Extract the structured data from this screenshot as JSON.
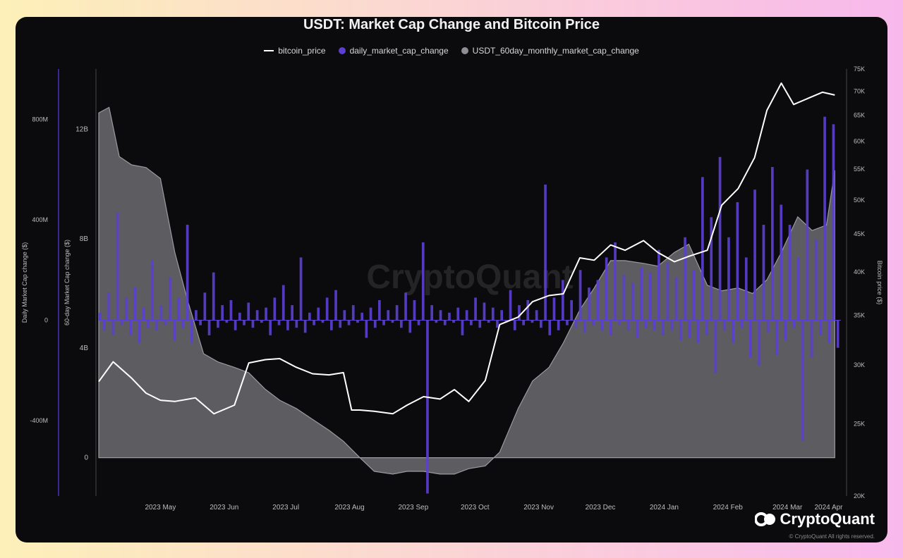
{
  "chart_data": {
    "type": "area",
    "title": "USDT: Market Cap Change and Bitcoin Price",
    "legend": [
      "bitcoin_price",
      "daily_market_cap_change",
      "USDT_60day_monthly_market_cap_change"
    ],
    "colors": {
      "bitcoin_price": "#ffffff",
      "daily_market_cap_change": "#5b3fd1",
      "USDT_60day_monthly_market_cap_change": "#8e8e94"
    },
    "x_ticks": [
      "2023 May",
      "2023 Jun",
      "2023 Jul",
      "2023 Aug",
      "2023 Sep",
      "2023 Oct",
      "2023 Nov",
      "2023 Dec",
      "2024 Jan",
      "2024 Feb",
      "2024 Mar",
      "2024 Apr"
    ],
    "axes": {
      "daily": {
        "label": "Daily Market Cap change ($)",
        "ticks": [
          "800M",
          "400M",
          "0",
          "-400M"
        ],
        "ylim": [
          -700,
          1000
        ]
      },
      "sixty_day": {
        "label": "60-day Market Cap change ($)",
        "ticks": [
          "12B",
          "8B",
          "4B",
          "0"
        ],
        "ylim": [
          -1.4,
          14.2
        ]
      },
      "btc": {
        "label": "Bitcoin price ($)",
        "ticks": [
          "75K",
          "70K",
          "65K",
          "60K",
          "55K",
          "50K",
          "45K",
          "40K",
          "35K",
          "30K",
          "25K",
          "20K"
        ],
        "scale": "log",
        "ylim": [
          20000,
          75000
        ]
      }
    },
    "series": [
      {
        "name": "USDT_60day_monthly_market_cap_change",
        "unit": "B",
        "x": [
          "2023-04-15",
          "2023-04-20",
          "2023-04-25",
          "2023-05-01",
          "2023-05-08",
          "2023-05-15",
          "2023-05-22",
          "2023-05-28",
          "2023-06-05",
          "2023-06-12",
          "2023-06-20",
          "2023-06-27",
          "2023-07-05",
          "2023-07-12",
          "2023-07-20",
          "2023-07-28",
          "2023-08-05",
          "2023-08-12",
          "2023-08-20",
          "2023-08-27",
          "2023-09-05",
          "2023-09-12",
          "2023-09-20",
          "2023-09-28",
          "2023-10-05",
          "2023-10-12",
          "2023-10-20",
          "2023-10-27",
          "2023-11-05",
          "2023-11-12",
          "2023-11-20",
          "2023-11-27",
          "2023-12-05",
          "2023-12-12",
          "2023-12-20",
          "2023-12-27",
          "2024-01-05",
          "2024-01-12",
          "2024-01-20",
          "2024-01-27",
          "2024-02-05",
          "2024-02-12",
          "2024-02-20",
          "2024-02-27",
          "2024-03-05",
          "2024-03-12",
          "2024-03-20",
          "2024-03-27",
          "2024-04-03",
          "2024-04-07"
        ],
        "values": [
          12.6,
          12.8,
          11.0,
          10.7,
          10.6,
          10.2,
          7.5,
          5.8,
          3.8,
          3.5,
          3.3,
          3.1,
          2.5,
          2.1,
          1.8,
          1.4,
          1.0,
          0.6,
          0.0,
          -0.5,
          -0.6,
          -0.5,
          -0.5,
          -0.6,
          -0.6,
          -0.4,
          -0.3,
          0.2,
          1.8,
          2.8,
          3.3,
          4.2,
          5.4,
          6.2,
          7.2,
          7.2,
          7.1,
          7.0,
          7.5,
          7.8,
          6.3,
          6.1,
          6.2,
          6.0,
          6.5,
          7.5,
          8.8,
          8.3,
          8.5,
          10.5
        ]
      },
      {
        "name": "bitcoin_price",
        "unit": "USD",
        "x": [
          "2023-04-15",
          "2023-04-22",
          "2023-05-01",
          "2023-05-08",
          "2023-05-15",
          "2023-05-22",
          "2023-06-01",
          "2023-06-10",
          "2023-06-20",
          "2023-06-27",
          "2023-07-05",
          "2023-07-12",
          "2023-07-20",
          "2023-07-28",
          "2023-08-05",
          "2023-08-12",
          "2023-08-16",
          "2023-08-20",
          "2023-08-27",
          "2023-09-05",
          "2023-09-12",
          "2023-09-20",
          "2023-09-28",
          "2023-10-05",
          "2023-10-12",
          "2023-10-20",
          "2023-10-27",
          "2023-11-05",
          "2023-11-12",
          "2023-11-20",
          "2023-11-27",
          "2023-12-05",
          "2023-12-12",
          "2023-12-20",
          "2023-12-27",
          "2024-01-05",
          "2024-01-12",
          "2024-01-20",
          "2024-01-27",
          "2024-02-05",
          "2024-02-12",
          "2024-02-20",
          "2024-02-28",
          "2024-03-05",
          "2024-03-12",
          "2024-03-18",
          "2024-03-25",
          "2024-04-01",
          "2024-04-07"
        ],
        "values": [
          28500,
          30300,
          28800,
          27500,
          26900,
          26800,
          27100,
          25800,
          26500,
          30200,
          30500,
          30600,
          29800,
          29200,
          29100,
          29300,
          26100,
          26100,
          26000,
          25800,
          26500,
          27200,
          27000,
          27800,
          26800,
          28600,
          34000,
          34800,
          36500,
          37200,
          37400,
          41800,
          41500,
          43500,
          42800,
          44100,
          42500,
          41300,
          42000,
          42800,
          49200,
          51800,
          57000,
          66000,
          71800,
          67200,
          68500,
          69800,
          69200
        ]
      },
      {
        "name": "daily_market_cap_change",
        "unit": "M",
        "values": [
          30,
          -40,
          110,
          -60,
          430,
          -20,
          90,
          -60,
          130,
          -90,
          50,
          -30,
          240,
          -40,
          60,
          -20,
          170,
          -80,
          90,
          -30,
          380,
          -90,
          40,
          -20,
          110,
          -60,
          190,
          -30,
          60,
          -10,
          80,
          -40,
          30,
          -20,
          70,
          -30,
          40,
          -10,
          50,
          -60,
          90,
          -20,
          140,
          -40,
          60,
          -30,
          250,
          -50,
          30,
          -20,
          50,
          -10,
          90,
          -40,
          120,
          -30,
          40,
          -20,
          60,
          -10,
          30,
          -70,
          50,
          -30,
          80,
          -20,
          40,
          -10,
          60,
          -30,
          110,
          -50,
          80,
          -20,
          310,
          -690,
          60,
          -10,
          40,
          -20,
          30,
          -10,
          50,
          -60,
          40,
          -20,
          90,
          -30,
          70,
          -10,
          50,
          -30,
          40,
          -10,
          120,
          -40,
          60,
          -20,
          80,
          -10,
          40,
          -30,
          540,
          -60,
          90,
          -40,
          160,
          -20,
          80,
          -30,
          200,
          -50,
          130,
          -20,
          160,
          -40,
          250,
          -60,
          310,
          -20,
          180,
          -40,
          150,
          -70,
          210,
          -30,
          190,
          -40,
          280,
          -60,
          230,
          -40,
          170,
          -80,
          330,
          -70,
          200,
          -90,
          570,
          -60,
          410,
          -210,
          650,
          -40,
          330,
          -90,
          470,
          -30,
          250,
          -150,
          520,
          -180,
          380,
          -50,
          610,
          -140,
          460,
          -80,
          380,
          -30,
          250,
          -480,
          600,
          -150,
          320,
          -60,
          810,
          -90,
          780,
          -110
        ]
      }
    ]
  },
  "brand": {
    "name": "CryptoQuant",
    "watermark": "CryptoQuant",
    "copyright": "© CryptoQuant All rights reserved."
  }
}
